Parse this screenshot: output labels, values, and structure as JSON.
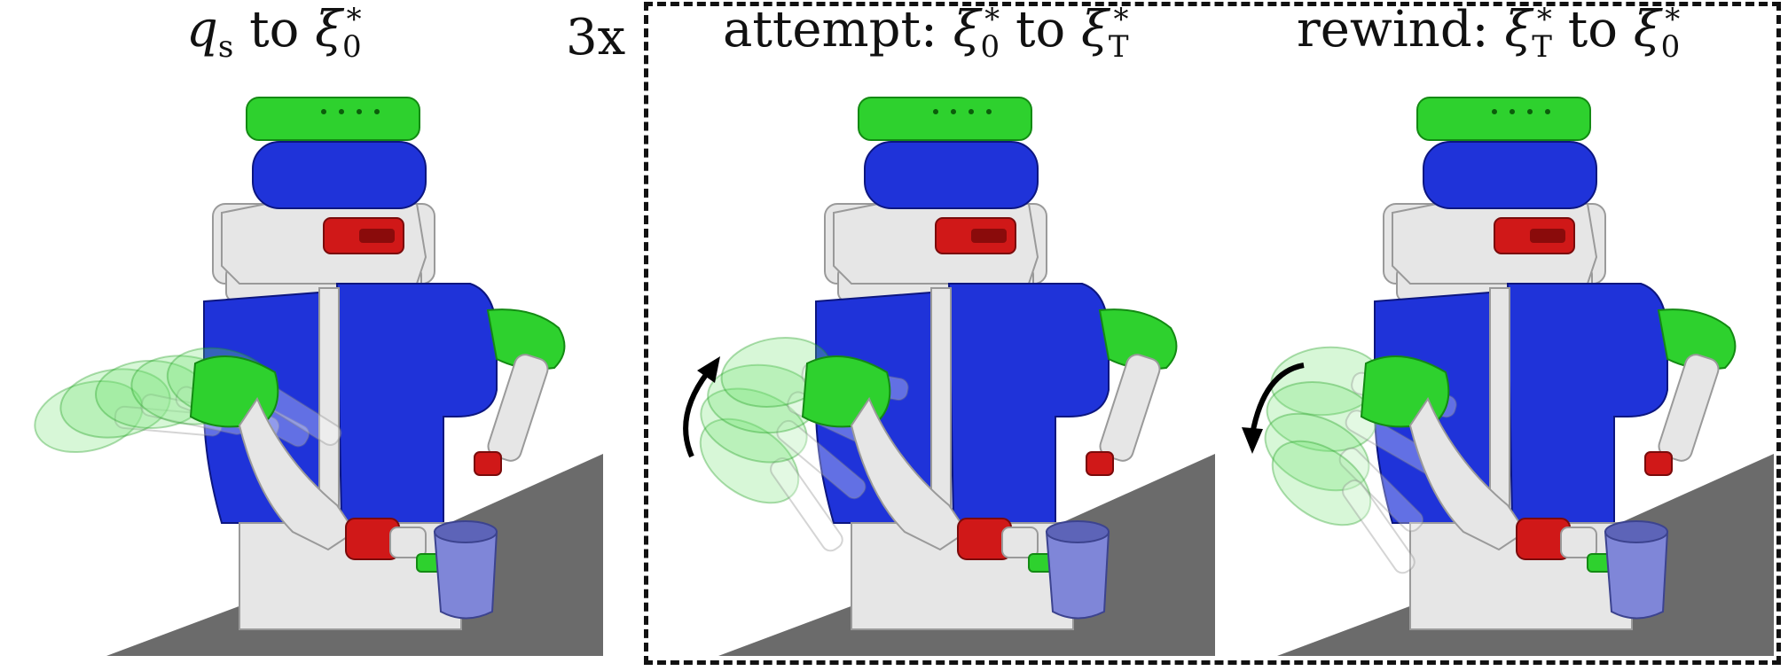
{
  "panels": [
    {
      "id": "approach",
      "caption": {
        "prefix": "",
        "from_sym": "q",
        "from_sub": "s",
        "from_sup": "",
        "word": "to",
        "to_sym": "ξ",
        "to_sub": "0",
        "to_sup": "*"
      },
      "arrow": "none"
    },
    {
      "id": "attempt",
      "caption": {
        "prefix": "attempt:",
        "from_sym": "ξ",
        "from_sub": "0",
        "from_sup": "*",
        "word": "to",
        "to_sym": "ξ",
        "to_sub": "T",
        "to_sup": "*"
      },
      "arrow": "up"
    },
    {
      "id": "rewind",
      "caption": {
        "prefix": "rewind:",
        "from_sym": "ξ",
        "from_sub": "T",
        "from_sup": "*",
        "word": "to",
        "to_sym": "ξ",
        "to_sub": "0",
        "to_sup": "*"
      },
      "arrow": "down"
    }
  ],
  "repeat": {
    "label": "3x"
  },
  "colors": {
    "robot_blue": "#1f33d9",
    "robot_green": "#2ed12e",
    "robot_red": "#d01818",
    "robot_white": "#e6e6e6",
    "table_gray": "#6b6b6b",
    "cup_lavender": "#7f86d8",
    "ghost_green": "#6ee36e"
  }
}
